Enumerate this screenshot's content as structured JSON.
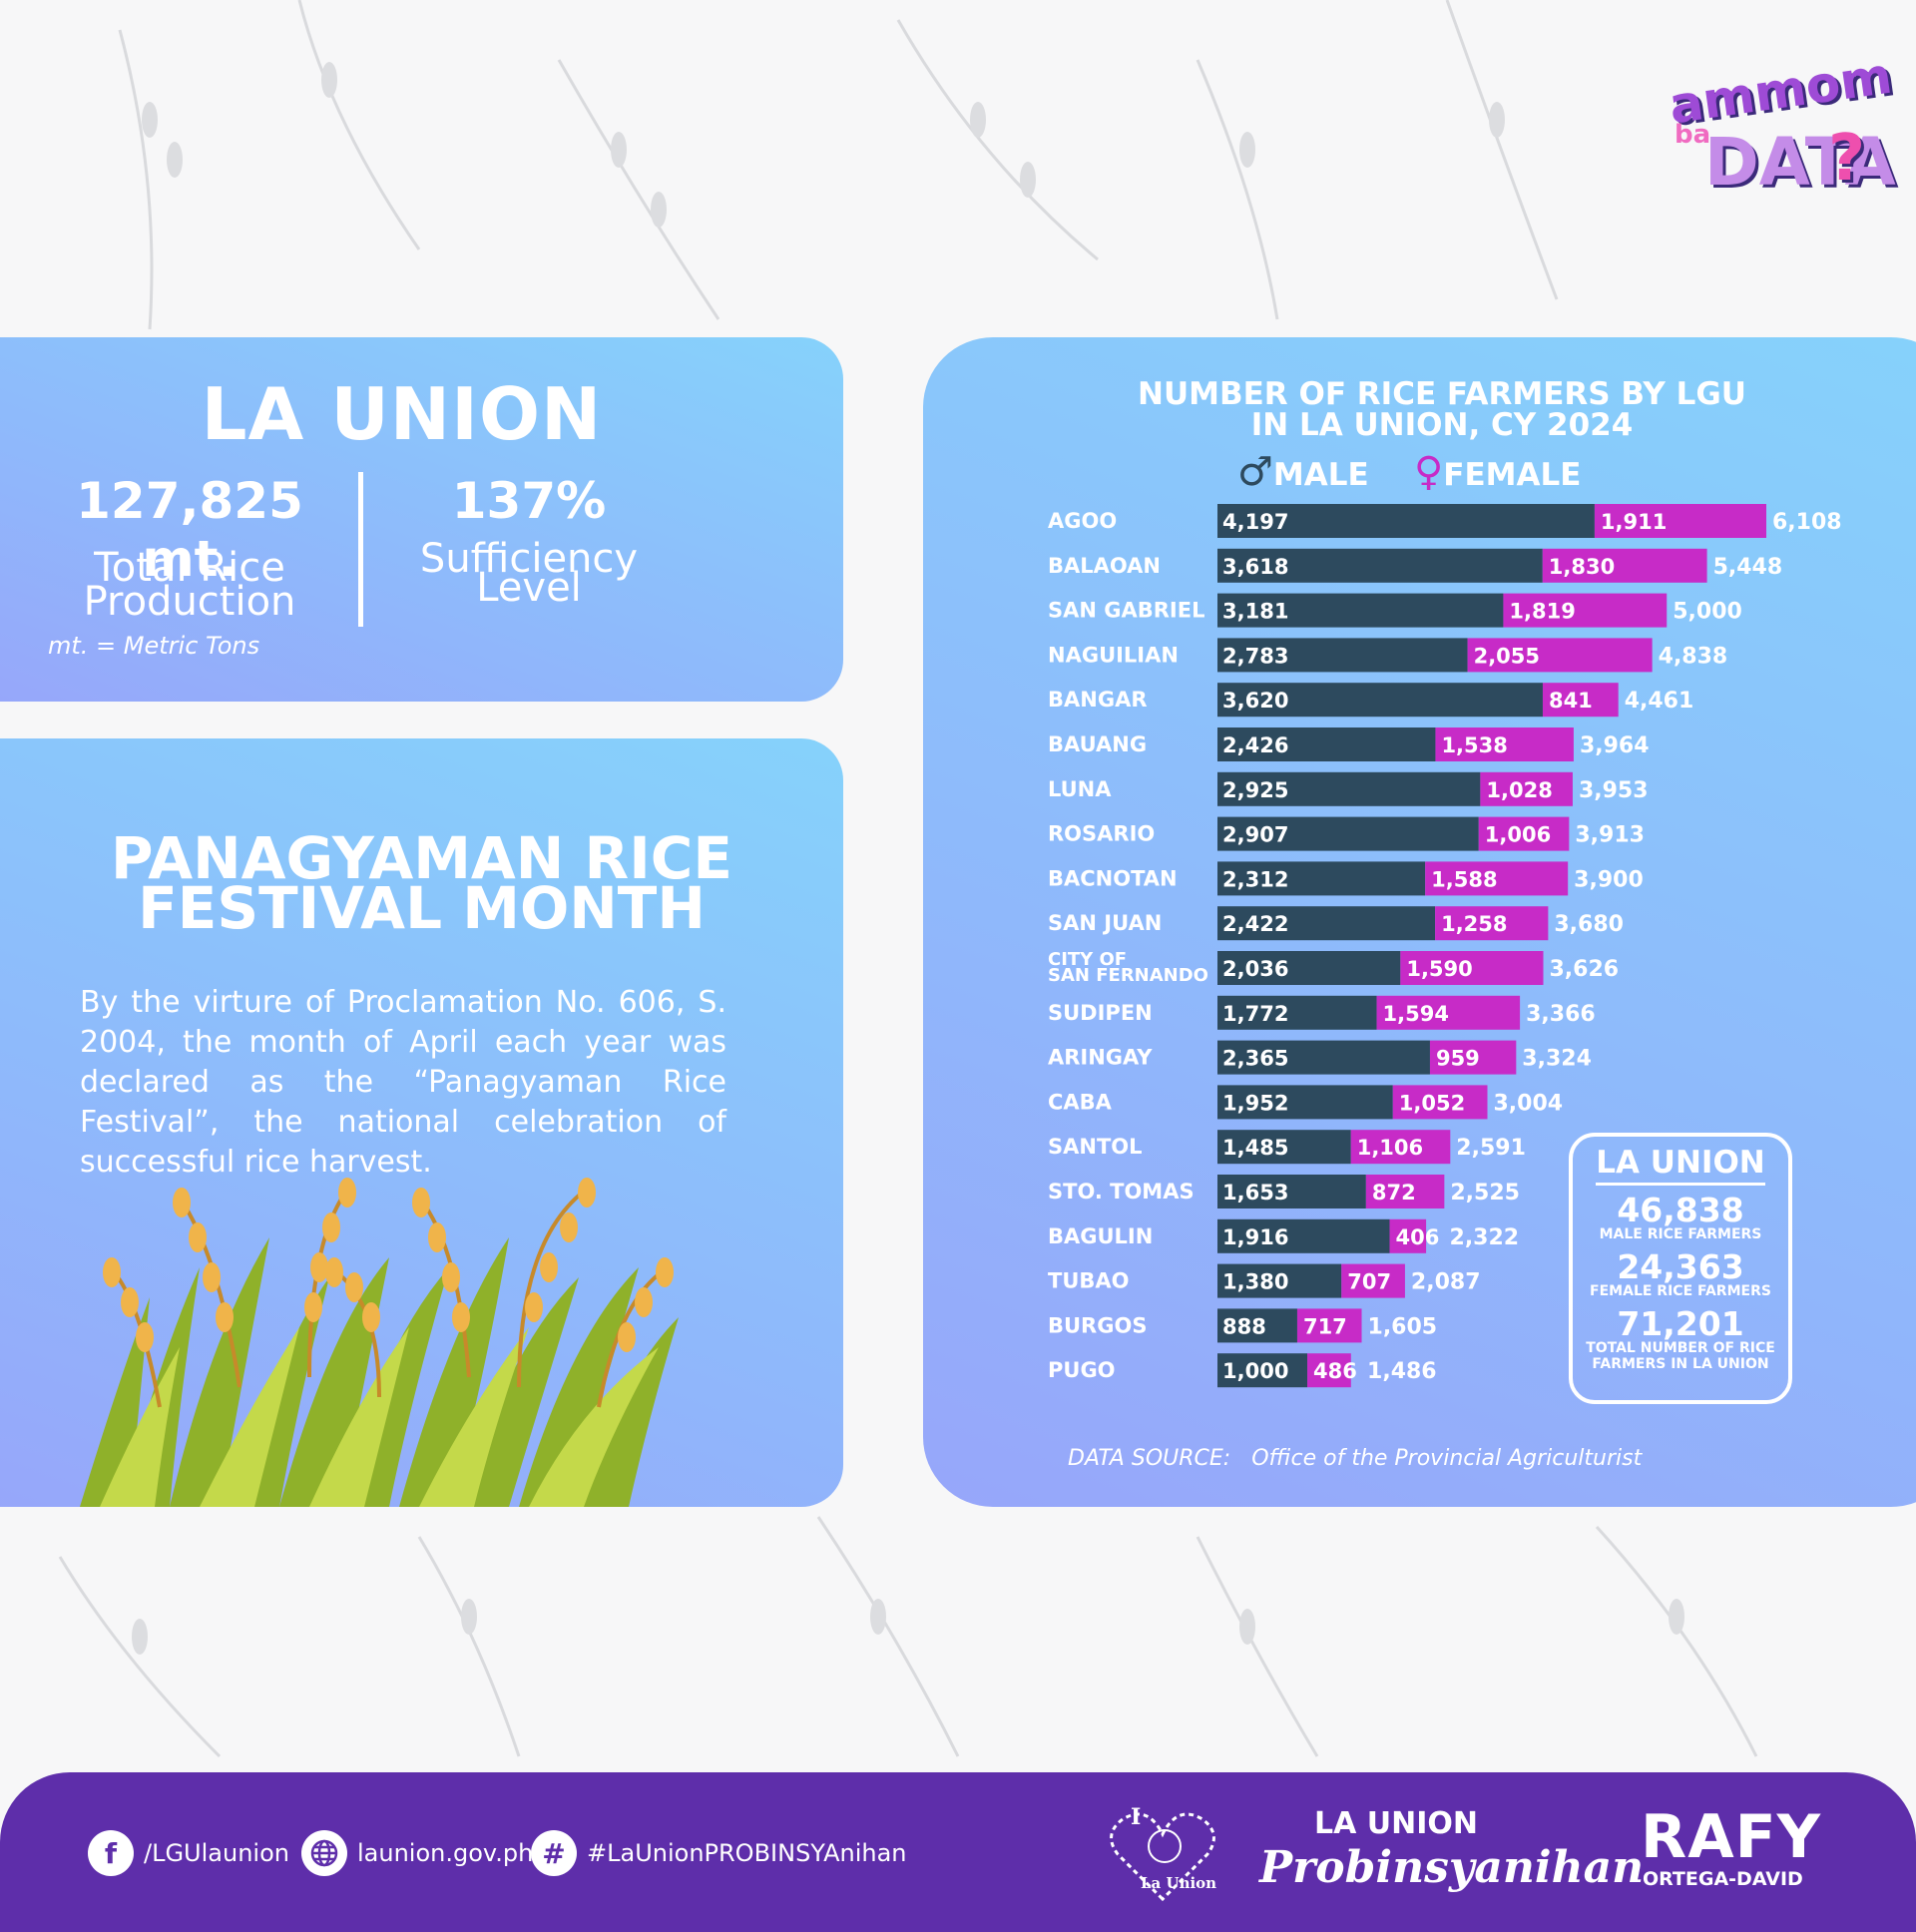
{
  "logo_top": {
    "line1": "ammom",
    "line2": "ba",
    "line3": "DATA",
    "mark": "?"
  },
  "stats": {
    "title": "LA UNION",
    "production_value": "127,825 mt.",
    "production_label_1": "Total Rice",
    "production_label_2": "Production",
    "sufficiency_value": "137%",
    "sufficiency_label_1": "Sufficiency",
    "sufficiency_label_2": "Level",
    "note": "mt. = Metric Tons"
  },
  "festival": {
    "title_1": "PANAGYAMAN RICE",
    "title_2": "FESTIVAL MONTH",
    "body": "By the virture of Proclamation No. 606, S. 2004, the month of April each year was declared as the “Panagyaman Rice Festival”, the national celebration of successful rice harvest."
  },
  "chart_data": {
    "type": "bar",
    "orientation": "horizontal",
    "stacked": true,
    "title": "NUMBER OF RICE FARMERS BY LGU IN LA UNION, CY 2024",
    "title_line1": "NUMBER OF RICE FARMERS BY LGU",
    "title_line2": "IN LA UNION, CY 2024",
    "legend": [
      {
        "symbol": "♂",
        "label": "MALE",
        "color": "#2d4a5e"
      },
      {
        "symbol": "♀",
        "label": "FEMALE",
        "color": "#c72bc7"
      }
    ],
    "categories": [
      "AGOO",
      "BALAOAN",
      "SAN GABRIEL",
      "NAGUILIAN",
      "BANGAR",
      "BAUANG",
      "LUNA",
      "ROSARIO",
      "BACNOTAN",
      "SAN JUAN",
      "CITY OF SAN FERNANDO",
      "SUDIPEN",
      "ARINGAY",
      "CABA",
      "SANTOL",
      "STO. TOMAS",
      "BAGULIN",
      "TUBAO",
      "BURGOS",
      "PUGO"
    ],
    "series": [
      {
        "name": "MALE",
        "color": "#2d4a5e",
        "values": [
          4197,
          3618,
          3181,
          2783,
          3620,
          2426,
          2925,
          2907,
          2312,
          2422,
          2036,
          1772,
          2365,
          1952,
          1485,
          1653,
          1916,
          1380,
          888,
          1000
        ]
      },
      {
        "name": "FEMALE",
        "color": "#c72bc7",
        "values": [
          1911,
          1830,
          1819,
          2055,
          841,
          1538,
          1028,
          1006,
          1588,
          1258,
          1590,
          1594,
          959,
          1052,
          1106,
          872,
          406,
          707,
          717,
          486
        ]
      }
    ],
    "totals": [
      6108,
      5448,
      5000,
      4838,
      4461,
      3964,
      3953,
      3913,
      3900,
      3680,
      3626,
      3366,
      3324,
      3004,
      2591,
      2525,
      2322,
      2087,
      1605,
      1486
    ],
    "xlim": [
      0,
      6108
    ]
  },
  "summary": {
    "title": "LA UNION",
    "male_value": "46,838",
    "male_label": "MALE RICE FARMERS",
    "female_value": "24,363",
    "female_label": "FEMALE RICE FARMERS",
    "total_value": "71,201",
    "total_label_1": "TOTAL NUMBER OF RICE",
    "total_label_2": "FARMERS IN LA UNION"
  },
  "source": {
    "label": "DATA SOURCE:",
    "value": "Office of the Provincial Agriculturist"
  },
  "footer": {
    "facebook": "/LGUlaunion",
    "website": "launion.gov.ph",
    "hashtag": "#LaUnionPROBINSYAnihan",
    "logo1_top": "I",
    "logo1_bottom": "La Union",
    "logo2_top": "LA UNION",
    "logo2_bottom": "Probinsyanihan",
    "logo3_top": "RAFY",
    "logo3_bottom": "ORTEGA-DAVID"
  },
  "icons": [
    "facebook-icon",
    "globe-icon",
    "hashtag-icon",
    "male-icon",
    "female-icon",
    "rice-plant-illustration"
  ]
}
